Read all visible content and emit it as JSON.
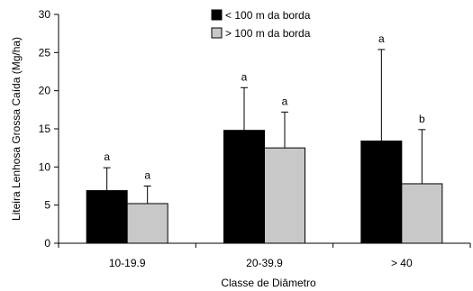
{
  "chart_data": {
    "type": "bar",
    "xlabel": "Classe de Diâmetro",
    "ylabel": "Liteira Lenhosa Grossa Caída (Mg/ha)",
    "ylim": [
      0,
      30
    ],
    "yticks": [
      0,
      5,
      10,
      15,
      20,
      25,
      30
    ],
    "categories": [
      "10-19.9",
      "20-39.9",
      "> 40"
    ],
    "series": [
      {
        "name": "< 100 m da borda",
        "color": "#000000",
        "values": [
          6.9,
          14.8,
          13.4
        ],
        "error_upper": [
          9.9,
          20.4,
          25.4
        ],
        "labels": [
          "a",
          "a",
          "a"
        ]
      },
      {
        "name": "> 100 m da borda",
        "color": "#c8c8c8",
        "values": [
          5.2,
          12.5,
          7.8
        ],
        "error_upper": [
          7.5,
          17.2,
          14.9
        ],
        "labels": [
          "a",
          "a",
          "b"
        ]
      }
    ],
    "legend_position": "top-center",
    "grid": false
  }
}
